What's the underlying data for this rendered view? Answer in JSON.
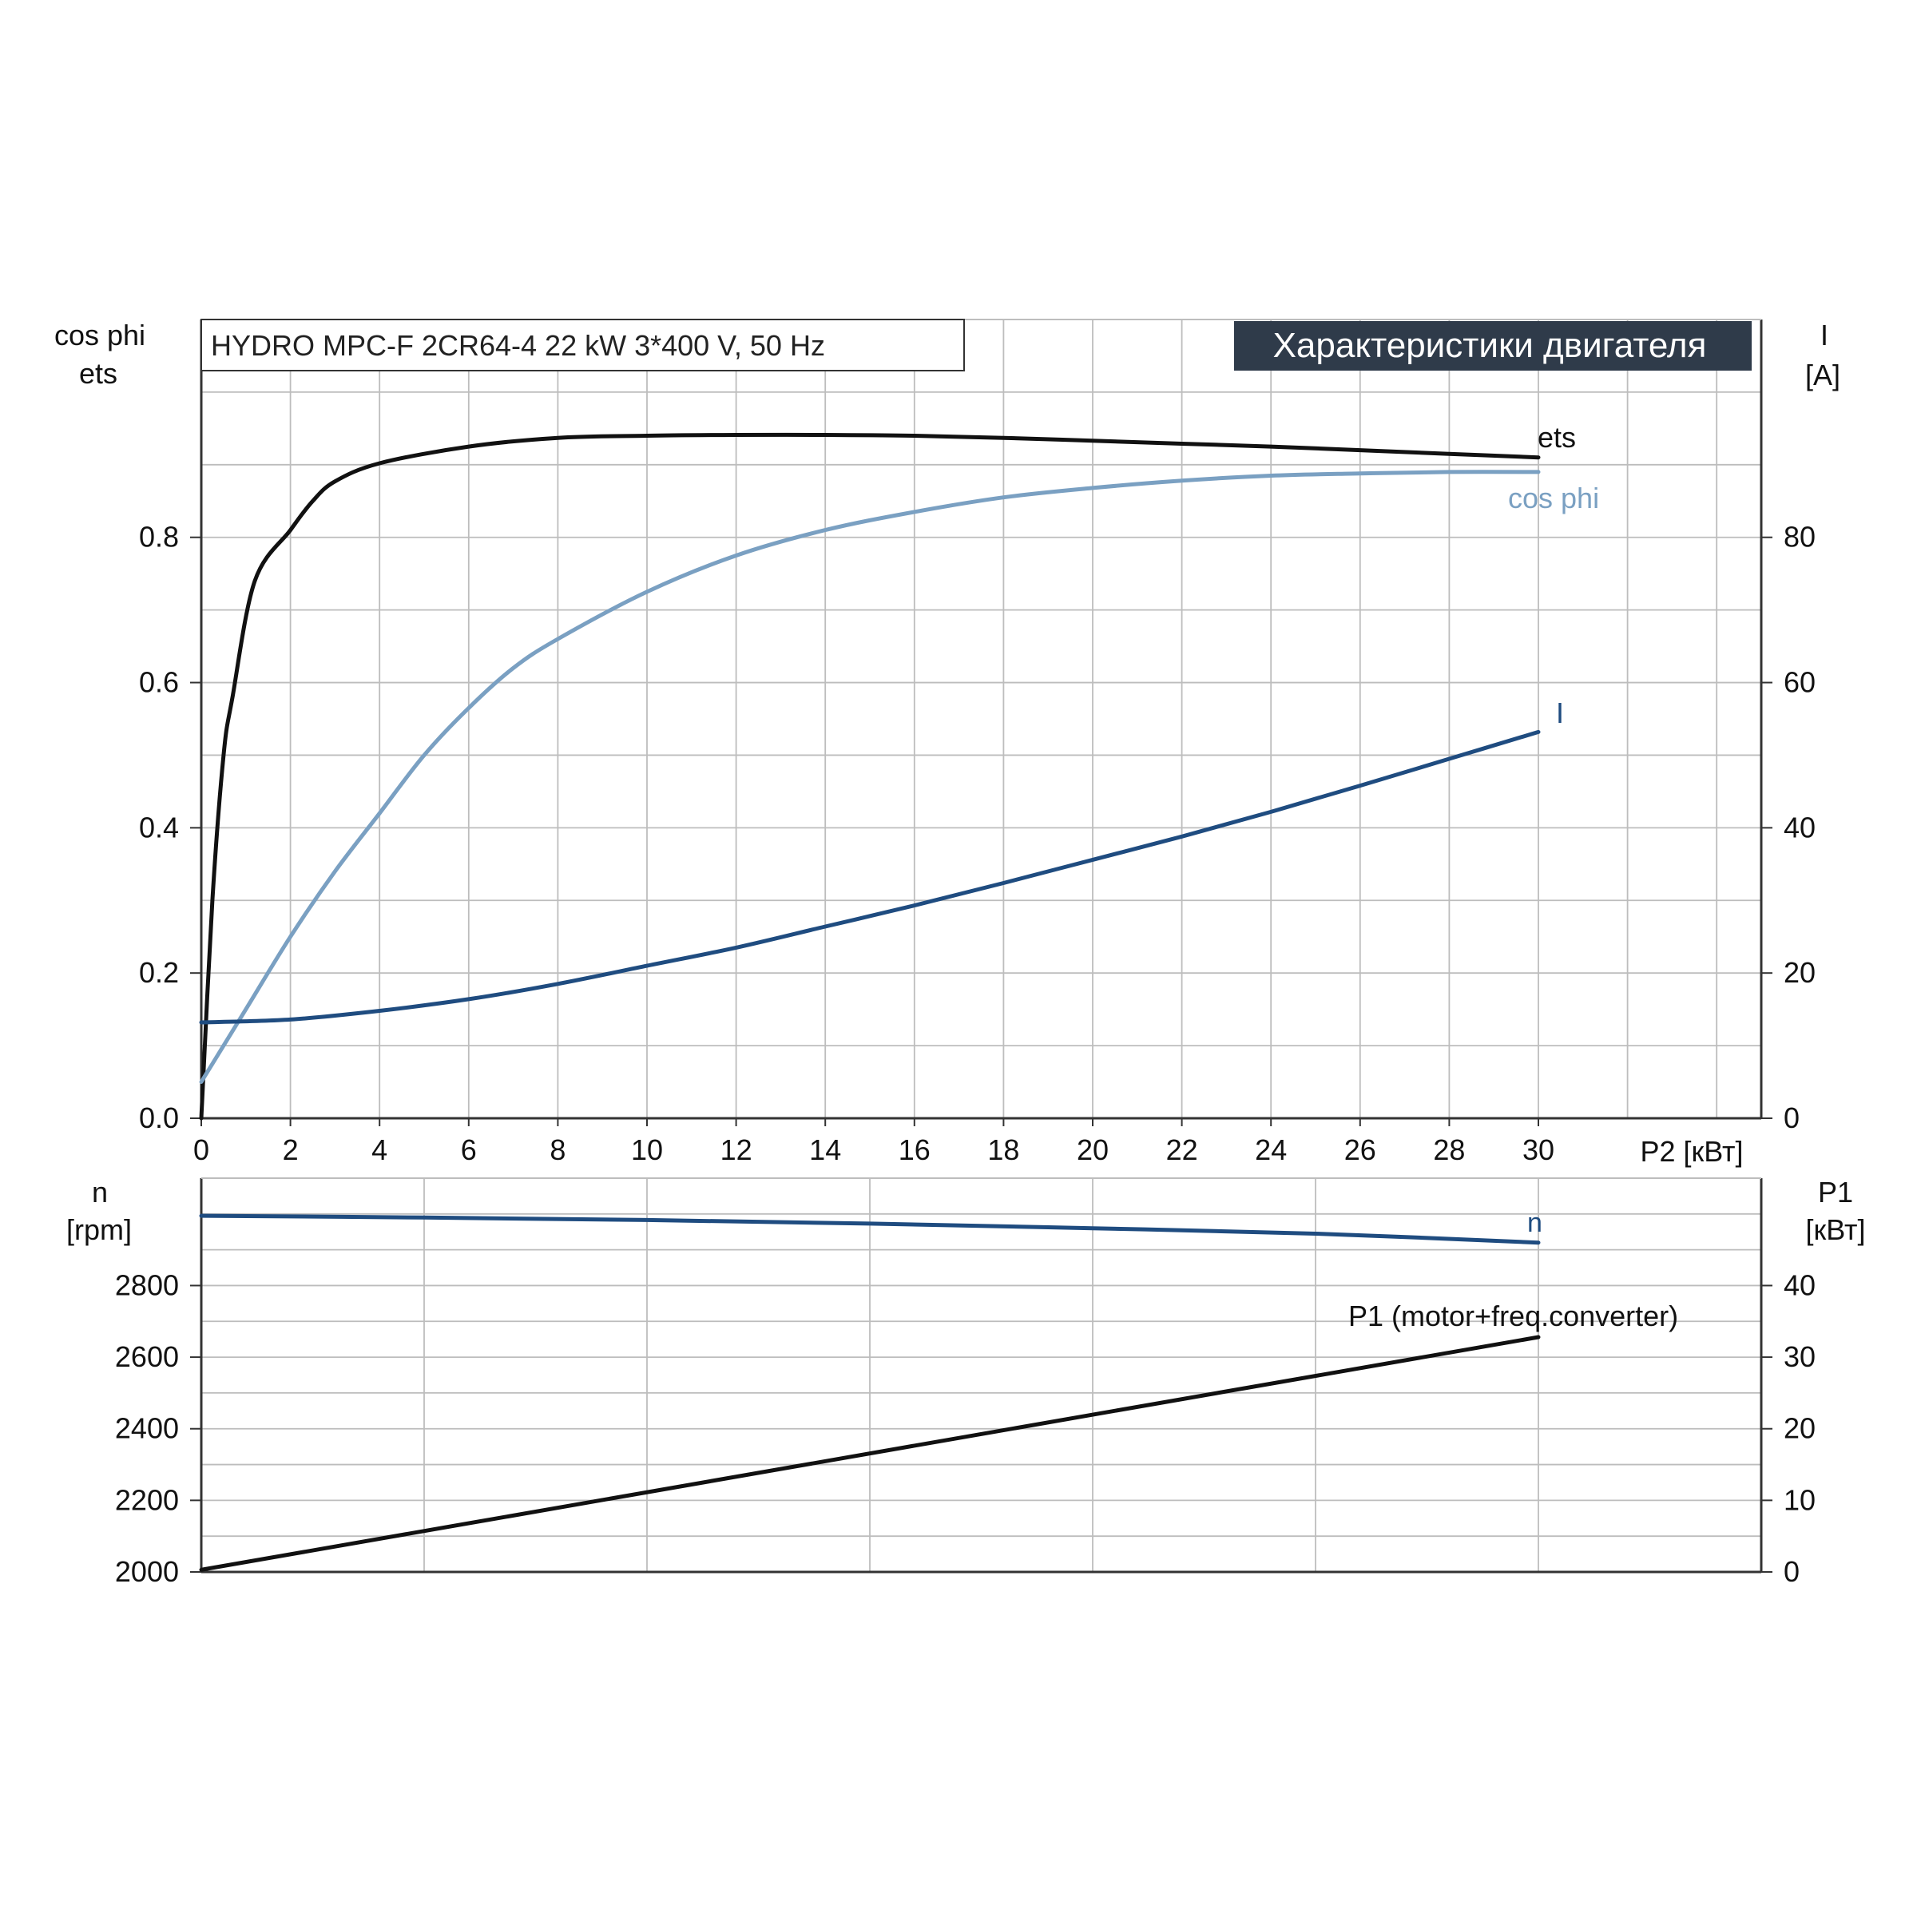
{
  "colors": {
    "ets": "#111111",
    "cosphi": "#7aa0c2",
    "current": "#1f4c80",
    "speed": "#1f4c80",
    "p1": "#111111",
    "grid": "#bdbdbd",
    "axis": "#333333",
    "header_bg": "#2f3b4a",
    "header_text": "#ffffff"
  },
  "header": {
    "model_text": "HYDRO MPC-F 2CR64-4   22 kW   3*400 V, 50 Hz",
    "section_title": "Характеристики двигателя"
  },
  "chart_data": [
    {
      "type": "line",
      "x_axis_label": "P2 [кВт]",
      "xlim": [
        0,
        35
      ],
      "x_ticks": [
        0,
        2,
        4,
        6,
        8,
        10,
        12,
        14,
        16,
        18,
        20,
        22,
        24,
        26,
        28,
        30
      ],
      "left_axis": {
        "label_line1": "cos phi",
        "label_line2": "ets",
        "lim": [
          0,
          1.1
        ],
        "ticks": [
          0.0,
          0.2,
          0.4,
          0.6,
          0.8
        ],
        "tick_labels": [
          "0.0",
          "0.2",
          "0.4",
          "0.6",
          "0.8"
        ]
      },
      "right_axis": {
        "label_line1": "I",
        "label_line2": "[A]",
        "lim": [
          0,
          110
        ],
        "ticks": [
          0,
          20,
          40,
          60,
          80
        ],
        "tick_labels": [
          "0",
          "20",
          "40",
          "60",
          "80"
        ]
      },
      "series": [
        {
          "name": "ets",
          "axis": "left",
          "x": [
            0,
            0.25,
            0.5,
            0.7,
            1.2,
            2.0,
            2.5,
            3.0,
            4.0,
            6.0,
            8.0,
            10.0,
            12.0,
            14.0,
            16.0,
            18.0,
            20.0,
            22.0,
            24.0,
            26.0,
            28.0,
            30.0
          ],
          "y": [
            0.0,
            0.3,
            0.5,
            0.58,
            0.74,
            0.81,
            0.85,
            0.877,
            0.902,
            0.925,
            0.937,
            0.94,
            0.941,
            0.941,
            0.94,
            0.937,
            0.933,
            0.929,
            0.925,
            0.92,
            0.915,
            0.91
          ]
        },
        {
          "name": "cos phi",
          "axis": "left",
          "x": [
            0,
            1,
            2,
            3,
            4,
            5,
            6,
            7,
            8,
            10,
            12,
            14,
            16,
            18,
            20,
            22,
            24,
            26,
            28,
            30
          ],
          "y": [
            0.05,
            0.15,
            0.25,
            0.34,
            0.42,
            0.5,
            0.565,
            0.62,
            0.66,
            0.725,
            0.775,
            0.81,
            0.835,
            0.855,
            0.868,
            0.878,
            0.885,
            0.888,
            0.89,
            0.89
          ]
        },
        {
          "name": "I",
          "axis": "right",
          "x": [
            0,
            2,
            4,
            6,
            8,
            10,
            12,
            14,
            16,
            18,
            20,
            22,
            24,
            26,
            28,
            30
          ],
          "y": [
            13.2,
            13.6,
            14.8,
            16.4,
            18.5,
            21,
            23.5,
            26.4,
            29.3,
            32.4,
            35.6,
            38.8,
            42.2,
            45.8,
            49.5,
            53.2
          ]
        }
      ]
    },
    {
      "type": "line",
      "xlim": [
        0,
        35
      ],
      "left_axis": {
        "label_line1": "n",
        "label_line2": "[rpm]",
        "lim": [
          2000,
          3100
        ],
        "ticks": [
          2000,
          2200,
          2400,
          2600,
          2800
        ],
        "tick_labels": [
          "2000",
          "2200",
          "2400",
          "2600",
          "2800"
        ]
      },
      "right_axis": {
        "label_line1": "P1",
        "label_line2": "[кВт]",
        "lim": [
          0,
          55
        ],
        "ticks": [
          0,
          10,
          20,
          30,
          40
        ],
        "tick_labels": [
          "0",
          "10",
          "20",
          "30",
          "40"
        ]
      },
      "series": [
        {
          "name": "n",
          "axis": "left",
          "x": [
            0,
            5,
            10,
            15,
            20,
            25,
            30
          ],
          "y": [
            2995,
            2990,
            2983,
            2973,
            2960,
            2945,
            2920
          ]
        },
        {
          "name": "P1 (motor+freq.converter)",
          "axis": "right",
          "x": [
            0,
            30
          ],
          "y": [
            0.3,
            32.8
          ]
        }
      ]
    }
  ]
}
